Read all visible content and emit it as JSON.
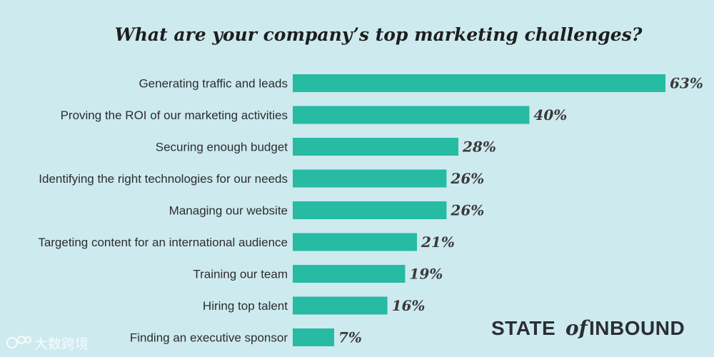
{
  "colors": {
    "background": "#cdeaef",
    "bar": "#26bba2",
    "title": "#1e1e1e",
    "label": "#2d2d2d",
    "value": "#3a3a3a",
    "brand": "#2a2f33"
  },
  "brand": {
    "word1": "STATE",
    "of": "of",
    "word2": "INBOUND"
  },
  "watermark": {
    "icon": "bigdata-logo-icon",
    "text": "大数跨境"
  },
  "chart_data": {
    "type": "bar",
    "orientation": "horizontal",
    "title": "What are your company’s top marketing challenges?",
    "xlabel": "",
    "ylabel": "",
    "xlim": [
      0,
      63
    ],
    "grid": false,
    "legend": "none",
    "categories": [
      "Generating traffic and leads",
      "Proving the ROI of our marketing activities",
      "Securing enough budget",
      "Identifying the right technologies for our needs",
      "Managing our website",
      "Targeting content for an international audience",
      "Training our team",
      "Hiring top talent",
      "Finding an executive sponsor"
    ],
    "values": [
      63,
      40,
      28,
      26,
      26,
      21,
      19,
      16,
      7
    ],
    "value_labels": [
      "63%",
      "40%",
      "28%",
      "26%",
      "26%",
      "21%",
      "19%",
      "16%",
      "7%"
    ]
  }
}
